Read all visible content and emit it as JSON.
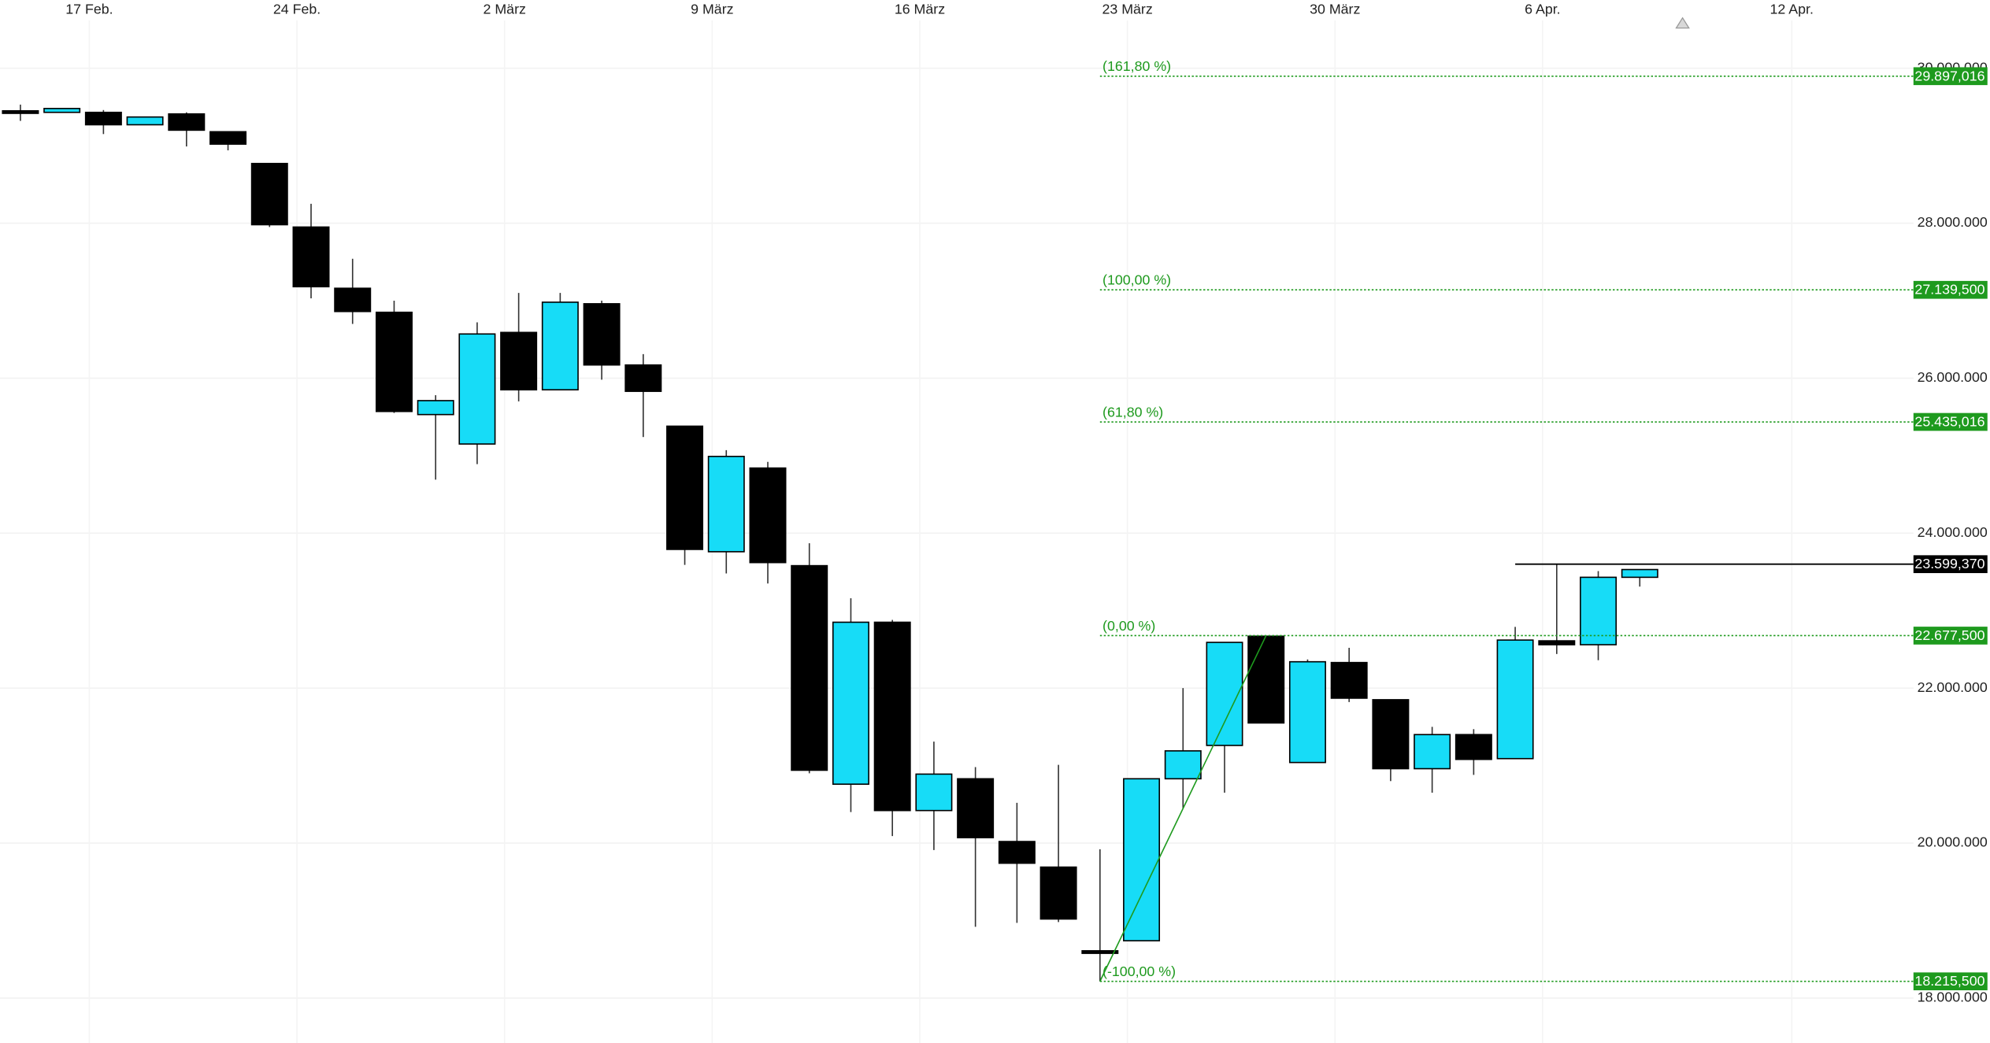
{
  "chart_data": {
    "type": "candlestick",
    "categories": [
      null,
      null,
      "17 Feb.",
      null,
      null,
      null,
      null,
      "24 Feb.",
      null,
      null,
      null,
      null,
      "2 März",
      null,
      null,
      null,
      null,
      "9 März",
      null,
      null,
      null,
      null,
      "16 März",
      null,
      null,
      null,
      null,
      "23 März",
      null,
      null,
      null,
      null,
      "30 März",
      null,
      null,
      null,
      null,
      "6 Apr.",
      null,
      null,
      null,
      null,
      null,
      "12 Apr."
    ],
    "open": [
      29450000,
      29430000,
      29430000,
      29270000,
      29410000,
      29180000,
      28770000,
      27950000,
      27160000,
      26850000,
      25530000,
      25150000,
      26590000,
      25850000,
      26960000,
      26170000,
      25380000,
      23760000,
      24840000,
      23580000,
      20760000,
      22850000,
      20420000,
      20830000,
      20020000,
      19690000,
      18610000,
      18740000,
      20830000,
      21260000,
      22670000,
      21040000,
      22330000,
      21850000,
      20960000,
      21400000,
      21090000,
      22610000,
      22560000,
      23430000,
      null,
      null,
      null,
      null
    ],
    "high": [
      29530000,
      29480000,
      29460000,
      29370000,
      29430000,
      29180000,
      28770000,
      28250000,
      27540000,
      27000000,
      25780000,
      26720000,
      27100000,
      27100000,
      27000000,
      26310000,
      25380000,
      25070000,
      24920000,
      23870000,
      23160000,
      22880000,
      21310000,
      20980000,
      20520000,
      21010000,
      19920000,
      20830000,
      22000000,
      22590000,
      22677500,
      22370000,
      22520000,
      21850000,
      21500000,
      21470000,
      22790000,
      23599370,
      23510000,
      23530000,
      null,
      null,
      null,
      null
    ],
    "low": [
      29320000,
      29430000,
      29150000,
      29270000,
      28990000,
      28940000,
      27950000,
      27030000,
      26700000,
      25550000,
      24690000,
      24890000,
      25700000,
      25850000,
      25980000,
      25240000,
      23590000,
      23480000,
      23350000,
      20900000,
      20400000,
      20090000,
      19910000,
      18920000,
      18970000,
      18980000,
      18215500,
      18740000,
      20450000,
      20650000,
      21550000,
      21040000,
      21820000,
      20800000,
      20650000,
      20880000,
      21090000,
      22440000,
      22360000,
      23310000,
      null,
      null,
      null,
      null
    ],
    "close": [
      29430000,
      29480000,
      29270000,
      29370000,
      29200000,
      29020000,
      27980000,
      27180000,
      26860000,
      25570000,
      25710000,
      26570000,
      25850000,
      26980000,
      26170000,
      25830000,
      23790000,
      24990000,
      23620000,
      20940000,
      22850000,
      20420000,
      20890000,
      20070000,
      19740000,
      19020000,
      18600000,
      20830000,
      21190000,
      22590000,
      21550000,
      22340000,
      21870000,
      20960000,
      21400000,
      21080000,
      22620000,
      22560000,
      23430000,
      23530000,
      null,
      null,
      null,
      null
    ],
    "up_color": "#17dcf7",
    "down_color": "#000000",
    "ylim": [
      17420000,
      30880000
    ],
    "yticks": [
      {
        "value": 18000000,
        "label": "18.000.000"
      },
      {
        "value": 20000000,
        "label": "20.000.000"
      },
      {
        "value": 22000000,
        "label": "22.000.000"
      },
      {
        "value": 24000000,
        "label": "24.000.000"
      },
      {
        "value": 26000000,
        "label": "26.000.000"
      },
      {
        "value": 28000000,
        "label": "28.000.000"
      },
      {
        "value": 30000000,
        "label": "30.000.000"
      }
    ],
    "grid": true,
    "fib_color": "#1e9a1e",
    "fib_levels": [
      {
        "name": "(161,80 %)",
        "value": 29897016,
        "label": "29.897,016"
      },
      {
        "name": "(100,00 %)",
        "value": 27139500,
        "label": "27.139,500"
      },
      {
        "name": "(61,80 %)",
        "value": 25435016,
        "label": "25.435,016"
      },
      {
        "name": "(0,00 %)",
        "value": 22677500,
        "label": "22.677,500"
      },
      {
        "name": "(-100,00 %)",
        "value": 18215500,
        "label": "18.215,500"
      }
    ],
    "last_price": {
      "value": 23599370,
      "label": "23.599,370"
    }
  }
}
